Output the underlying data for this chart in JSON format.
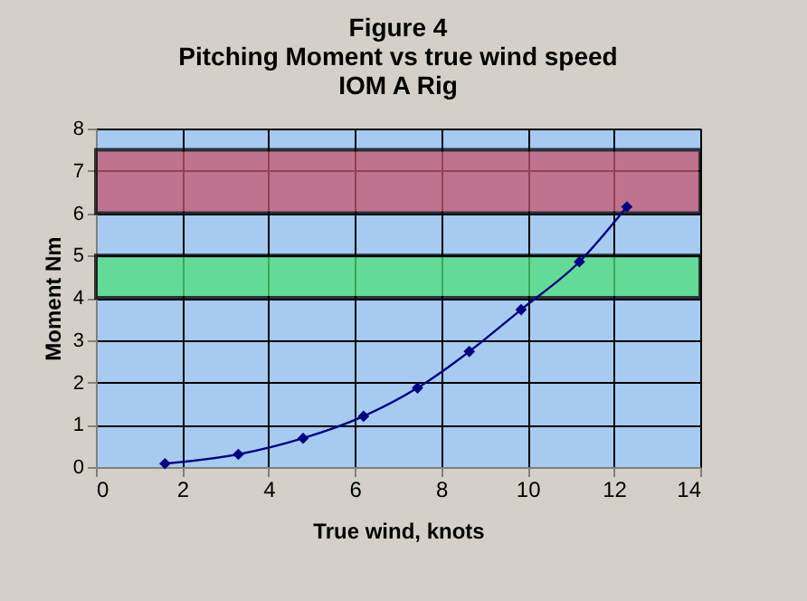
{
  "chart_data": {
    "type": "line",
    "title": "Figure 4\nPitching Moment vs true wind speed\nIOM A Rig",
    "xlabel": "True wind, knots",
    "ylabel": "Moment Nm",
    "x": [
      1.6,
      3.3,
      4.8,
      6.2,
      7.45,
      8.65,
      9.85,
      11.2,
      12.3
    ],
    "series": [
      {
        "color": "#000080",
        "values": [
          0.08,
          0.3,
          0.68,
          1.2,
          1.87,
          2.73,
          3.72,
          4.85,
          6.15
        ]
      }
    ],
    "xlim": [
      0,
      14
    ],
    "xticks": [
      0,
      2,
      4,
      6,
      8,
      10,
      12,
      14
    ],
    "ylim": [
      0,
      8
    ],
    "yticks": [
      0,
      1,
      2,
      3,
      4,
      5,
      6,
      7,
      8
    ],
    "bands": [
      {
        "axis": "y",
        "from": 6,
        "to": 7.5,
        "color": "#c8566e"
      },
      {
        "axis": "y",
        "from": 4,
        "to": 5,
        "color": "#4ee07a"
      }
    ],
    "grid": true,
    "marker": "diamond",
    "line_style": "solid"
  }
}
